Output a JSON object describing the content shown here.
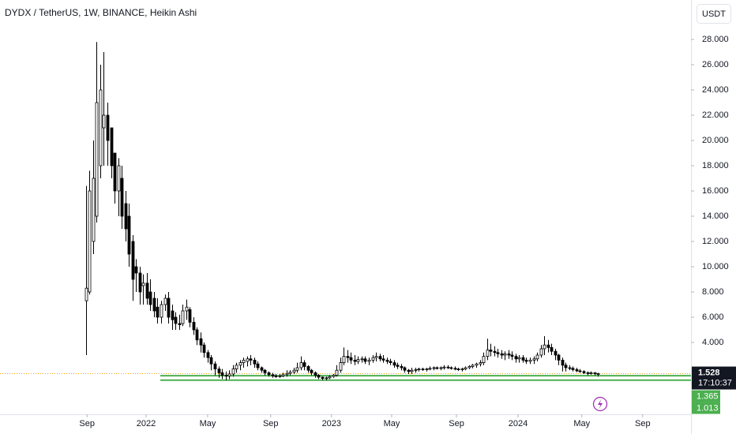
{
  "chart_data": {
    "type": "candlestick",
    "title": "DYDX / TetherUS, 1W, BINANCE, Heikin Ashi",
    "currency": "USDT",
    "countdown": "17:10:37",
    "last_price": 1.528,
    "levels": [
      1.365,
      1.013
    ],
    "up_color": "#ffffff",
    "down_color": "#000000",
    "level_color": "#4caf50",
    "price_line_color": "#f7a21b",
    "xlim": [
      -24,
      169
    ],
    "ylim": [
      -1.6875,
      31.125
    ],
    "xticks": [
      {
        "value": 0.3,
        "label": "Sep"
      },
      {
        "value": 16.8,
        "label": "2022"
      },
      {
        "value": 34,
        "label": "May"
      },
      {
        "value": 51.6,
        "label": "Sep"
      },
      {
        "value": 68.6,
        "label": "2023"
      },
      {
        "value": 85.4,
        "label": "May"
      },
      {
        "value": 103.5,
        "label": "Sep"
      },
      {
        "value": 120.7,
        "label": "2024"
      },
      {
        "value": 138.5,
        "label": "May"
      },
      {
        "value": 155.5,
        "label": "Sep"
      }
    ],
    "yticks": [
      {
        "value": 4,
        "label": "4.000"
      },
      {
        "value": 6,
        "label": "6.000"
      },
      {
        "value": 8,
        "label": "8.000"
      },
      {
        "value": 10,
        "label": "10.000"
      },
      {
        "value": 12,
        "label": "12.000"
      },
      {
        "value": 14,
        "label": "14.000"
      },
      {
        "value": 16,
        "label": "16.000"
      },
      {
        "value": 18,
        "label": "18.000"
      },
      {
        "value": 20,
        "label": "20.000"
      },
      {
        "value": 22,
        "label": "22.000"
      },
      {
        "value": 24,
        "label": "24.000"
      },
      {
        "value": 26,
        "label": "26.000"
      },
      {
        "value": 28,
        "label": "28.000"
      }
    ],
    "candles": [
      [
        7.3,
        16.4,
        3.0,
        8.3
      ],
      [
        8.0,
        17.6,
        7.8,
        16.0
      ],
      [
        12,
        20,
        11,
        17
      ],
      [
        14,
        27.8,
        13.5,
        23
      ],
      [
        18,
        26,
        17,
        24
      ],
      [
        21,
        27,
        18,
        22
      ],
      [
        22,
        23,
        18,
        20
      ],
      [
        21,
        21,
        17,
        18
      ],
      [
        19,
        19,
        15,
        16
      ],
      [
        16,
        18.6,
        14,
        18
      ],
      [
        17,
        18,
        13,
        14
      ],
      [
        15,
        16,
        12,
        13
      ],
      [
        14,
        15,
        10,
        11
      ],
      [
        12,
        12.5,
        7.3,
        9
      ],
      [
        10,
        10.6,
        8,
        9.5
      ],
      [
        9.5,
        10,
        7,
        8
      ],
      [
        8.5,
        9.4,
        7,
        8.7
      ],
      [
        8.7,
        9.5,
        7,
        7.5
      ],
      [
        8,
        9,
        6.5,
        7
      ],
      [
        7.5,
        8,
        6,
        6.5
      ],
      [
        6.8,
        7.5,
        5.5,
        6
      ],
      [
        6,
        7.3,
        5.5,
        7
      ],
      [
        7,
        7.8,
        6.5,
        7.5
      ],
      [
        7.5,
        8,
        5.5,
        6
      ],
      [
        6.5,
        7,
        5,
        5.8
      ],
      [
        6,
        6.4,
        5,
        5.5
      ],
      [
        5.5,
        6.2,
        5,
        5.4
      ],
      [
        5.5,
        7,
        5.3,
        6.5
      ],
      [
        6.5,
        7.4,
        5.8,
        6.8
      ],
      [
        6.6,
        6.8,
        5.2,
        5.6
      ],
      [
        5.6,
        6,
        4.6,
        5.0
      ],
      [
        5,
        5.2,
        3.8,
        4.2
      ],
      [
        4.3,
        4.8,
        3.2,
        3.8
      ],
      [
        3.8,
        4.0,
        2.8,
        3.2
      ],
      [
        3.2,
        3.4,
        2.4,
        2.8
      ],
      [
        2.8,
        3.0,
        1.8,
        2.3
      ],
      [
        2.3,
        2.5,
        1.4,
        1.9
      ],
      [
        1.9,
        2.1,
        1.2,
        1.6
      ],
      [
        1.6,
        1.9,
        1.1,
        1.4
      ],
      [
        1.4,
        1.7,
        1.0,
        1.35
      ],
      [
        1.35,
        1.8,
        1.1,
        1.5
      ],
      [
        1.5,
        2.2,
        1.3,
        1.9
      ],
      [
        1.9,
        2.4,
        1.6,
        2.2
      ],
      [
        2.2,
        2.6,
        1.8,
        2.4
      ],
      [
        2.4,
        2.8,
        2.0,
        2.6
      ],
      [
        2.5,
        2.9,
        2.1,
        2.7
      ],
      [
        2.7,
        3.0,
        2.2,
        2.6
      ],
      [
        2.6,
        2.8,
        2.0,
        2.3
      ],
      [
        2.3,
        2.5,
        1.8,
        2.0
      ],
      [
        2.0,
        2.1,
        1.6,
        1.8
      ],
      [
        1.8,
        1.9,
        1.4,
        1.6
      ],
      [
        1.6,
        1.7,
        1.3,
        1.45
      ],
      [
        1.45,
        1.6,
        1.2,
        1.35
      ],
      [
        1.35,
        1.5,
        1.2,
        1.3
      ],
      [
        1.3,
        1.5,
        1.2,
        1.35
      ],
      [
        1.35,
        1.6,
        1.25,
        1.45
      ],
      [
        1.45,
        1.8,
        1.3,
        1.55
      ],
      [
        1.55,
        1.8,
        1.4,
        1.65
      ],
      [
        1.65,
        2.0,
        1.5,
        1.8
      ],
      [
        1.8,
        2.4,
        1.6,
        2.0
      ],
      [
        2.0,
        2.9,
        1.8,
        2.4
      ],
      [
        2.4,
        2.6,
        1.8,
        2.1
      ],
      [
        2.1,
        2.2,
        1.6,
        1.8
      ],
      [
        1.8,
        1.9,
        1.4,
        1.6
      ],
      [
        1.6,
        1.7,
        1.2,
        1.4
      ],
      [
        1.4,
        1.5,
        1.1,
        1.25
      ],
      [
        1.25,
        1.3,
        1.0,
        1.15
      ],
      [
        1.15,
        1.3,
        1.0,
        1.2
      ],
      [
        1.2,
        1.4,
        1.1,
        1.3
      ],
      [
        1.3,
        1.5,
        1.2,
        1.4
      ],
      [
        1.4,
        2.2,
        1.3,
        1.8
      ],
      [
        1.8,
        2.8,
        1.6,
        2.4
      ],
      [
        2.4,
        3.6,
        2.2,
        2.9
      ],
      [
        2.9,
        3.4,
        2.4,
        2.8
      ],
      [
        2.8,
        3.2,
        2.3,
        2.6
      ],
      [
        2.6,
        3.0,
        2.2,
        2.5
      ],
      [
        2.5,
        2.9,
        2.3,
        2.65
      ],
      [
        2.65,
        2.9,
        2.4,
        2.7
      ],
      [
        2.7,
        2.9,
        2.3,
        2.5
      ],
      [
        2.5,
        2.8,
        2.2,
        2.6
      ],
      [
        2.6,
        3.0,
        2.4,
        2.8
      ],
      [
        2.8,
        3.2,
        2.5,
        2.9
      ],
      [
        2.9,
        3.1,
        2.5,
        2.7
      ],
      [
        2.7,
        3.0,
        2.4,
        2.6
      ],
      [
        2.6,
        2.8,
        2.3,
        2.5
      ],
      [
        2.5,
        2.7,
        2.2,
        2.4
      ],
      [
        2.4,
        2.6,
        2.0,
        2.2
      ],
      [
        2.2,
        2.4,
        1.9,
        2.1
      ],
      [
        2.1,
        2.3,
        1.8,
        2.0
      ],
      [
        2.0,
        2.1,
        1.6,
        1.8
      ],
      [
        1.8,
        1.9,
        1.5,
        1.7
      ],
      [
        1.7,
        2.0,
        1.5,
        1.8
      ],
      [
        1.8,
        2.0,
        1.6,
        1.85
      ],
      [
        1.85,
        2.0,
        1.7,
        1.9
      ],
      [
        1.9,
        2.0,
        1.75,
        1.85
      ],
      [
        1.85,
        2.0,
        1.7,
        1.9
      ],
      [
        1.9,
        2.1,
        1.8,
        1.95
      ],
      [
        1.95,
        2.1,
        1.8,
        2.0
      ],
      [
        2.0,
        2.1,
        1.85,
        1.95
      ],
      [
        1.95,
        2.1,
        1.8,
        2.0
      ],
      [
        2.0,
        2.2,
        1.85,
        2.05
      ],
      [
        2.05,
        2.2,
        1.9,
        2.0
      ],
      [
        2.0,
        2.1,
        1.85,
        1.95
      ],
      [
        1.95,
        2.1,
        1.8,
        1.9
      ],
      [
        1.9,
        2.0,
        1.75,
        1.85
      ],
      [
        1.85,
        2.0,
        1.7,
        1.9
      ],
      [
        1.9,
        2.1,
        1.8,
        2.0
      ],
      [
        2.0,
        2.2,
        1.9,
        2.1
      ],
      [
        2.1,
        2.3,
        1.95,
        2.2
      ],
      [
        2.2,
        2.4,
        2.0,
        2.3
      ],
      [
        2.3,
        2.6,
        2.1,
        2.4
      ],
      [
        2.4,
        3.2,
        2.2,
        2.9
      ],
      [
        2.9,
        4.3,
        2.6,
        3.4
      ],
      [
        3.4,
        3.9,
        2.9,
        3.3
      ],
      [
        3.3,
        3.7,
        2.9,
        3.2
      ],
      [
        3.2,
        3.5,
        2.8,
        3.1
      ],
      [
        3.1,
        3.4,
        2.7,
        3.0
      ],
      [
        3.0,
        3.3,
        2.6,
        3.1
      ],
      [
        3.1,
        3.4,
        2.7,
        3.0
      ],
      [
        3.0,
        3.3,
        2.6,
        2.9
      ],
      [
        2.9,
        3.1,
        2.4,
        2.7
      ],
      [
        2.7,
        3.0,
        2.4,
        2.8
      ],
      [
        2.8,
        3.0,
        2.4,
        2.6
      ],
      [
        2.6,
        2.8,
        2.3,
        2.5
      ],
      [
        2.5,
        2.8,
        2.3,
        2.6
      ],
      [
        2.6,
        2.9,
        2.3,
        2.7
      ],
      [
        2.7,
        3.2,
        2.5,
        3.0
      ],
      [
        3.0,
        3.8,
        2.8,
        3.5
      ],
      [
        3.5,
        4.5,
        3.0,
        3.8
      ],
      [
        3.8,
        4.2,
        3.2,
        3.6
      ],
      [
        3.6,
        3.9,
        3.0,
        3.3
      ],
      [
        3.3,
        3.5,
        2.6,
        3.0
      ],
      [
        3.0,
        3.1,
        2.2,
        2.6
      ],
      [
        2.6,
        2.8,
        1.7,
        2.2
      ],
      [
        2.2,
        2.4,
        1.7,
        2.0
      ],
      [
        2.0,
        2.2,
        1.8,
        1.95
      ],
      [
        1.95,
        2.1,
        1.7,
        1.85
      ],
      [
        1.85,
        2.0,
        1.65,
        1.75
      ],
      [
        1.75,
        1.9,
        1.6,
        1.7
      ],
      [
        1.7,
        1.8,
        1.5,
        1.6
      ],
      [
        1.6,
        1.7,
        1.4,
        1.55
      ],
      [
        1.55,
        1.7,
        1.45,
        1.6
      ],
      [
        1.6,
        1.65,
        1.4,
        1.52
      ],
      [
        1.52,
        1.6,
        1.3,
        1.528
      ]
    ]
  }
}
